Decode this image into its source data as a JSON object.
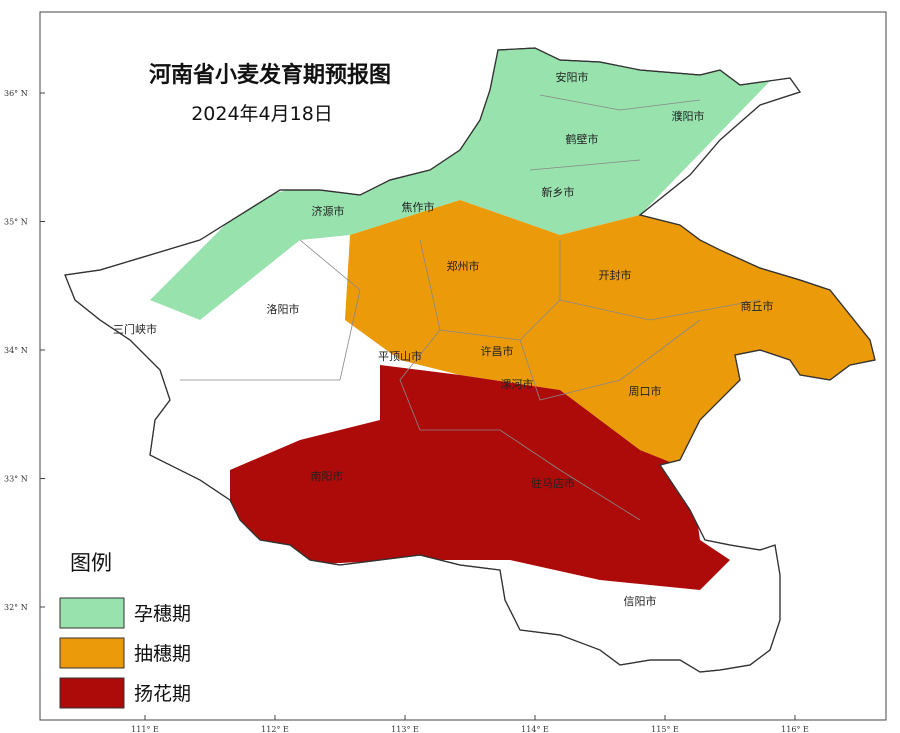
{
  "title": "河南省小麦发育期预报图",
  "date": "2024年4月18日",
  "legend": {
    "title": "图例",
    "items": [
      {
        "label": "孕穗期",
        "color": "#98e2ad"
      },
      {
        "label": "抽穗期",
        "color": "#eb9a0a"
      },
      {
        "label": "扬花期",
        "color": "#ad0a0a"
      }
    ]
  },
  "cities": [
    "安阳市",
    "濮阳市",
    "鹤壁市",
    "新乡市",
    "济源市",
    "焦作市",
    "郑州市",
    "开封市",
    "商丘市",
    "洛阳市",
    "三门峡市",
    "平顶山市",
    "许昌市",
    "漯河市",
    "周口市",
    "南阳市",
    "驻马店市",
    "信阳市"
  ],
  "axes": {
    "longitude_ticks": [
      "111° E",
      "112° E",
      "113° E",
      "114° E",
      "115° E",
      "116° E"
    ],
    "latitude_ticks": [
      "36° N",
      "35° N",
      "34° N",
      "33° N",
      "32° N"
    ]
  }
}
